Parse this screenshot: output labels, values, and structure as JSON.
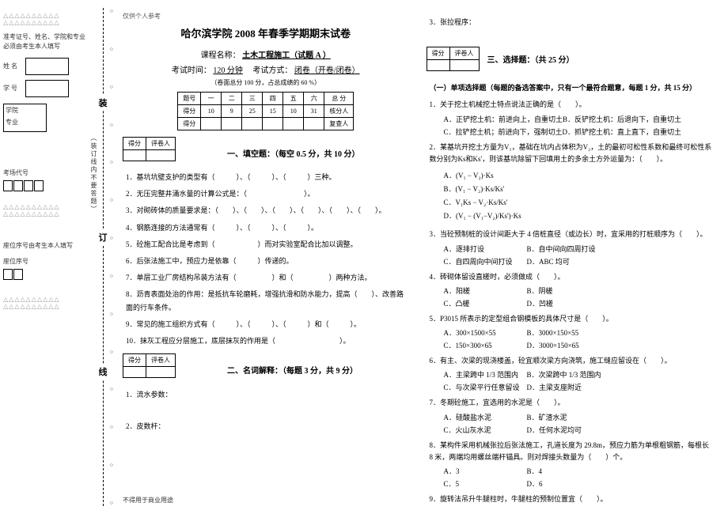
{
  "leftMargin": {
    "triangles": "△△△△△△△△△△",
    "note1": "准考证号、姓名、学院和专业必须由考生本人填写",
    "labels": {
      "name": "姓 名",
      "id": "学 号",
      "college": "学院",
      "major": "专业",
      "exam": "考场代号",
      "seat": "座位序号"
    },
    "note2": "座位序号由考生本人填写"
  },
  "binding": {
    "c1": "装",
    "c2": "订",
    "c3": "线",
    "vert1": "（装订线内不要答题）"
  },
  "header": "仅供个人参考",
  "title": "哈尔滨学院 2008 年春季学期期末试卷",
  "courseLabel": "课程名称：",
  "courseName": "土木工程施工（试题 A ）",
  "examTimeLabel": "考试时间：",
  "examTime": "120 分钟",
  "examModeLabel": "考试方式：",
  "examMode": "闭卷（开卷/闭卷）",
  "note": "（卷面总分 100 分，占总成绩的 60 %）",
  "scoreTable": {
    "headers": [
      "题号",
      "一",
      "二",
      "三",
      "四",
      "五",
      "六",
      "总 分"
    ],
    "row1": [
      "得分",
      "10",
      "9",
      "25",
      "15",
      "10",
      "31",
      "核分人"
    ],
    "row2": [
      "得分",
      "",
      "",
      "",
      "",
      "",
      "",
      "复查人"
    ]
  },
  "miniTable": {
    "h1": "得分",
    "h2": "评卷人"
  },
  "section1": {
    "title": "一、填空题：（每空 0.5 分，共 10 分）"
  },
  "fillQ": [
    "基坑坑壁支护的类型有（　　　）、（　　　）、（　　　）三种。",
    "无压完整井涌水量的计算公式是：（　　　　　　　　）。",
    "对砌砖体的质量要求是：（　　）、（　　）、（　　）、（　　）、（　　）、（　　）。",
    "钢筋连接的方法通常有（　　　）、（　　　）、（　　　）。",
    "砼施工配合比是考虑到（　　　　　　）而对实验室配合比加以调整。",
    "后张法施工中，预应力是依靠（　　　）传递的。",
    "单层工业厂房结构吊装方法有（　　　　　）和（　　　　　）两种方法。",
    "沥青表面处治的作用：是抵抗车轮磨耗，增强抗滑和防水能力，提高（　　）、改善路面的行车条件。",
    "常见的施工组织方式有（　　　）、（　　　）、（　　　）和（　　　）。",
    "抹灰工程应分层施工，底层抹灰的作用是（　　　　　　　　　）。"
  ],
  "section2": {
    "title": "二、名词解释：（每题 3 分，共 9 分）"
  },
  "termQ": [
    "流水参数：",
    "皮数杆："
  ],
  "footer": "不得用于商业用途",
  "col2": {
    "q3": "3．张拉程序：",
    "section3": "三、选择题：（共 25 分）",
    "subA": "（一）单项选择题（每题的备选答案中，只有一个最符合题意，每题 1 分，共 15 分）",
    "mc": [
      {
        "stem": "1．关于挖土机械挖土特点说法正确的是（　　）。",
        "opts": [
          "A．正铲挖土机：前进向上，自重切土",
          "B．反铲挖土机：后退向下，自重切土",
          "C．拉铲挖土机；前进向下，强制切土",
          "D．抓铲挖土机：直上直下，自重切土"
        ]
      },
      {
        "stem": "2．某基坑开挖土方量为V₁，基础在坑内占体积为V₂，土的最初可松性系数和最终可松性系数分别为Ks和Ks'，则该基坑除留下回填用土的多余土方外运量为：（　　）。",
        "opts": [
          "A．(V₁ − V₂)·Ks",
          "B．(V₁ − V₂)·Ks/Ks'",
          "C．V₁Ks − V₂·Ks/Ks'",
          "D．(V₁ − (V₁−V₂)/Ks')·Ks"
        ]
      },
      {
        "stem": "3．当砼预制桩的设计间距大于 4 倍桩直径（或边长）时，宜采用的打桩顺序为（　　）。",
        "opts": [
          "A．逐排打设",
          "B．自中间向四周打设",
          "C．自四周向中间打设",
          "D．ABC 均可"
        ]
      },
      {
        "stem": "4．砖砌体留设直槎时，必须做成（　　）。",
        "opts": [
          "A．阳槎",
          "B．阴槎",
          "C．凸槎",
          "D．凹槎"
        ]
      },
      {
        "stem": "5．P3015 所表示的定型组合钢模板的具体尺寸是（　　）。",
        "opts": [
          "A．300×1500×55",
          "B．3000×150×55",
          "C．150×300×65",
          "D．3000×150×65"
        ]
      },
      {
        "stem": "6．有主、次梁的现浇楼盖，砼宜顺次梁方向浇筑，施工缝应留设在（　　）。",
        "opts": [
          "A．主梁跨中 1/3 范围内",
          "B．次梁跨中 1/3 范围内",
          "C．与次梁平行任意留设",
          "D．主梁支座附近"
        ]
      },
      {
        "stem": "7．冬期砼施工，宜选用的水泥是（　　）。",
        "opts": [
          "A．硅酸盐水泥",
          "B．矿渣水泥",
          "C．火山灰水泥",
          "D．任何水泥均可"
        ]
      },
      {
        "stem": "8．某构件采用机械张拉后张法施工，孔道长度为 29.8m，预应力筋为单根粗钢筋，每根长 8 米，两端均用螺丝端杆锚具。则对焊接头数量为（　　）个。",
        "opts": [
          "A．3",
          "B．4",
          "C．5",
          "D．6"
        ]
      },
      {
        "stem": "9．旋转法吊升牛腿柱时，牛腿柱的预制位置宜（　　）。",
        "opts": []
      }
    ]
  }
}
